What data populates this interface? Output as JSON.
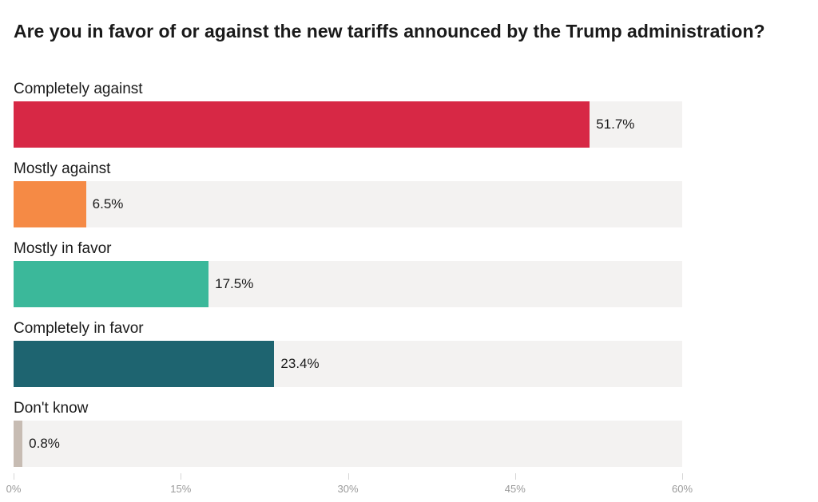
{
  "chart_data": {
    "type": "bar",
    "orientation": "horizontal",
    "title": "Are you in favor of or against the new tariffs announced by the Trump administration?",
    "categories": [
      "Completely against",
      "Mostly against",
      "Mostly in favor",
      "Completely in favor",
      "Don't know"
    ],
    "values": [
      51.7,
      6.5,
      17.5,
      23.4,
      0.8
    ],
    "value_labels": [
      "51.7%",
      "6.5%",
      "17.5%",
      "23.4%",
      "0.8%"
    ],
    "colors": [
      "#d72845",
      "#f58a45",
      "#3bb89a",
      "#1e6470",
      "#c7bcb3"
    ],
    "track_color": "#f3f2f1",
    "xlim": [
      0,
      60
    ],
    "xticks": [
      0,
      15,
      30,
      45,
      60
    ],
    "xtick_labels": [
      "0%",
      "15%",
      "30%",
      "45%",
      "60%"
    ],
    "xlabel": "",
    "ylabel": "",
    "grid": false
  }
}
